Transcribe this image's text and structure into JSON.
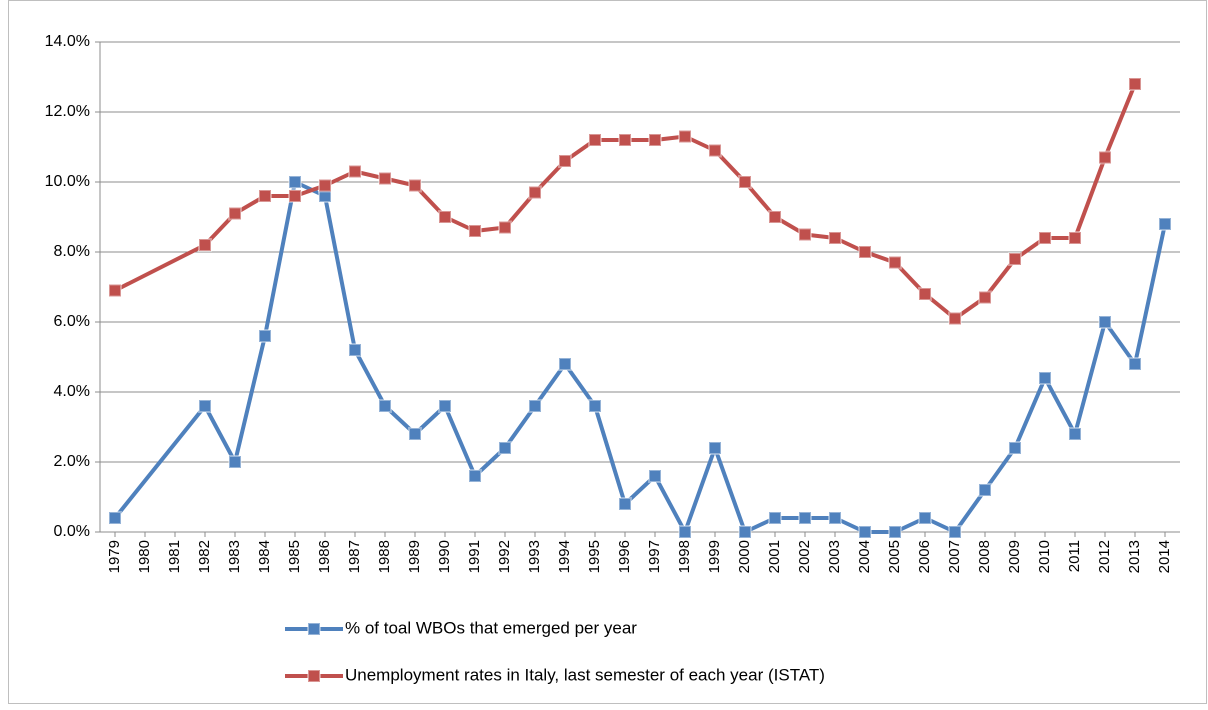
{
  "chart_data": {
    "type": "line",
    "x": [
      1979,
      1982,
      1983,
      1984,
      1985,
      1986,
      1987,
      1988,
      1989,
      1990,
      1991,
      1992,
      1993,
      1994,
      1995,
      1996,
      1997,
      1998,
      1999,
      2000,
      2001,
      2002,
      2003,
      2004,
      2005,
      2006,
      2007,
      2008,
      2009,
      2010,
      2011,
      2012,
      2013,
      2014
    ],
    "xlim": [
      1978.5,
      2014.5
    ],
    "xticks": [
      1979,
      1980,
      1981,
      1982,
      1983,
      1984,
      1985,
      1986,
      1987,
      1988,
      1989,
      1990,
      1991,
      1992,
      1993,
      1994,
      1995,
      1996,
      1997,
      1998,
      1999,
      2000,
      2001,
      2002,
      2003,
      2004,
      2005,
      2006,
      2007,
      2008,
      2009,
      2010,
      2011,
      2012,
      2013,
      2014
    ],
    "ylim": [
      0,
      14
    ],
    "yticks": [
      {
        "value": 0,
        "label": "0.0%"
      },
      {
        "value": 2,
        "label": "2.0%"
      },
      {
        "value": 4,
        "label": "4.0%"
      },
      {
        "value": 6,
        "label": "6.0%"
      },
      {
        "value": 8,
        "label": "8.0%"
      },
      {
        "value": 10,
        "label": "10.0%"
      },
      {
        "value": 12,
        "label": "12.0%"
      },
      {
        "value": 14,
        "label": "14.0%"
      }
    ],
    "grid": true,
    "legend": "bottom",
    "series": [
      {
        "name": "% of toal WBOs that emerged per year",
        "color": "#4f81bd",
        "values": [
          0.4,
          3.6,
          2.0,
          5.6,
          10.0,
          9.6,
          5.2,
          3.6,
          2.8,
          3.6,
          1.6,
          2.4,
          3.6,
          4.8,
          3.6,
          0.8,
          1.6,
          0,
          2.4,
          0,
          0.4,
          0.4,
          0.4,
          0,
          0,
          0.4,
          0,
          1.2,
          2.4,
          4.4,
          2.8,
          6.0,
          4.8,
          8.8
        ]
      },
      {
        "name": "Unemployment rates in Italy, last semester of each year (ISTAT)",
        "color": "#c0504d",
        "values": [
          6.9,
          8.2,
          9.1,
          9.6,
          9.6,
          9.9,
          10.3,
          10.1,
          9.9,
          9.0,
          8.6,
          8.7,
          9.7,
          10.6,
          11.2,
          11.2,
          11.2,
          11.3,
          10.9,
          10.0,
          9.0,
          8.5,
          8.4,
          8.0,
          7.7,
          6.8,
          6.1,
          6.7,
          7.8,
          8.4,
          8.4,
          10.7,
          12.8,
          null
        ]
      }
    ]
  }
}
